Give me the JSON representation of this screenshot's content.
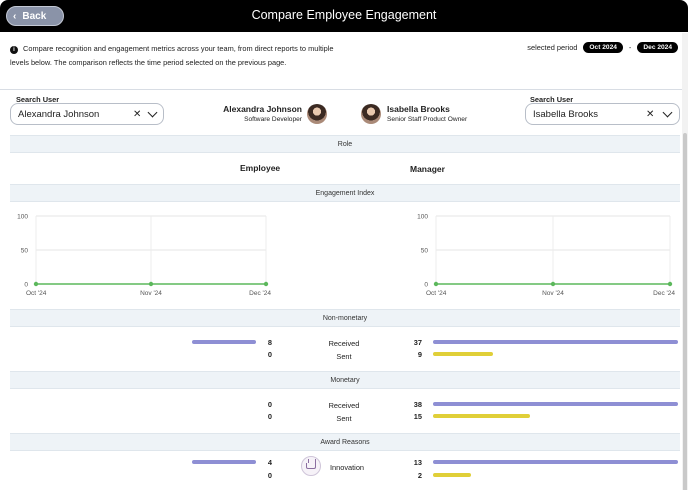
{
  "header": {
    "back_label": "Back",
    "title": "Compare Employee Engagement"
  },
  "info": {
    "text": "Compare recognition and engagement metrics across your team, from direct reports to multiple levels below. The comparison reflects the time period selected on the previous page."
  },
  "period": {
    "label": "selected period",
    "start": "Oct 2024",
    "separator": "-",
    "end": "Dec 2024"
  },
  "left_user": {
    "search_label": "Search User",
    "value": "Alexandra Johnson",
    "name": "Alexandra Johnson",
    "role": "Software Developer"
  },
  "right_user": {
    "search_label": "Search User",
    "value": "Isabella Brooks",
    "name": "Isabella Brooks",
    "role": "Senior Staff Product Owner"
  },
  "sections": {
    "role": "Role",
    "engagement": "Engagement Index",
    "non_monetary": "Non-monetary",
    "monetary": "Monetary",
    "award_reasons": "Award Reasons"
  },
  "roles": {
    "left": "Employee",
    "right": "Manager"
  },
  "chart_data": [
    {
      "type": "line",
      "x": [
        "Oct '24",
        "Nov '24",
        "Dec '24"
      ],
      "series": [
        {
          "values": [
            0,
            0,
            0
          ]
        }
      ],
      "ylim": [
        0,
        100
      ],
      "yticks": [
        "0",
        "50",
        "100"
      ],
      "grid": true,
      "color": "#5cb85c"
    },
    {
      "type": "line",
      "x": [
        "Oct '24",
        "Nov '24",
        "Dec '24"
      ],
      "series": [
        {
          "values": [
            0,
            0,
            0
          ]
        }
      ],
      "ylim": [
        0,
        100
      ],
      "yticks": [
        "0",
        "50",
        "100"
      ],
      "grid": true,
      "color": "#5cb85c"
    }
  ],
  "non_monetary": {
    "received_label": "Received",
    "sent_label": "Sent",
    "left": {
      "received": "8",
      "sent": "0"
    },
    "right": {
      "received": "37",
      "sent": "9"
    }
  },
  "monetary": {
    "received_label": "Received",
    "sent_label": "Sent",
    "left": {
      "received": "0",
      "sent": "0"
    },
    "right": {
      "received": "38",
      "sent": "15"
    }
  },
  "award": {
    "label": "Innovation",
    "icon": "crown-icon",
    "left": {
      "received": "4",
      "sent": "0"
    },
    "right": {
      "received": "13",
      "sent": "2"
    }
  },
  "colors": {
    "received": "#8e8fd4",
    "sent": "#e0cf38",
    "line": "#5cb85c"
  }
}
